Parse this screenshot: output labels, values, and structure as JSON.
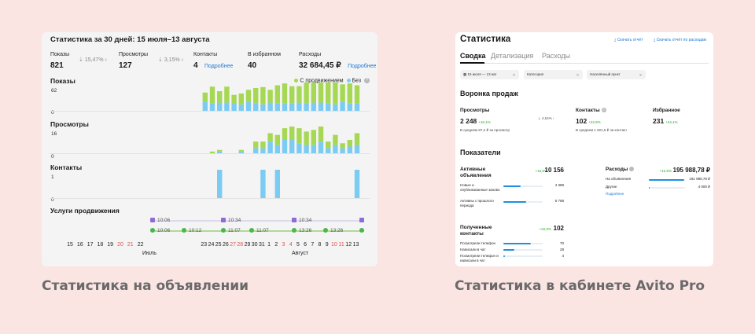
{
  "colors": {
    "promo": "#a6d854",
    "no_promo": "#7ccbf3",
    "link": "#1e78d2",
    "positive": "#2aa52a"
  },
  "left": {
    "title": "Статистика за 30 дней: 15 июля–13 августа",
    "kpis": [
      {
        "label": "Показы",
        "value": "821",
        "change": "15,47%"
      },
      {
        "label": "Просмотры",
        "value": "127",
        "change": "3,15%"
      },
      {
        "label": "Контакты",
        "value": "4",
        "link": "Подробнее"
      },
      {
        "label": "В избранном",
        "value": "40"
      },
      {
        "label": "Расходы",
        "value": "32 684,45 ₽",
        "link": "Подробнее"
      }
    ],
    "legend": {
      "promo": "С продвижением",
      "no_promo": "Без"
    },
    "sections": {
      "impressions": {
        "label": "Показы",
        "max": "62",
        "min": "0"
      },
      "views": {
        "label": "Просмотры",
        "max": "16",
        "min": "0"
      },
      "contacts": {
        "label": "Контакты",
        "max": "1",
        "min": "0"
      },
      "promo": {
        "label": "Услуги продвижения"
      }
    },
    "promo_times": {
      "purple": [
        "10:06",
        "10:34",
        "10:34"
      ],
      "green": [
        "10:06",
        "10:12",
        "11:07",
        "11:07",
        "13:26",
        "13:26"
      ]
    },
    "days": [
      "15",
      "16",
      "17",
      "18",
      "19",
      "20",
      "21",
      "22",
      "23",
      "24",
      "25",
      "26",
      "27",
      "28",
      "29",
      "30",
      "31",
      "1",
      "2",
      "3",
      "4",
      "5",
      "6",
      "7",
      "8",
      "9",
      "10",
      "11",
      "12",
      "13"
    ],
    "weekend_days": [
      "20",
      "21",
      "27",
      "28",
      "3",
      "4",
      "10",
      "11"
    ],
    "months": {
      "july": "Июль",
      "august": "Август"
    }
  },
  "chart_data": [
    {
      "type": "bar",
      "title": "Показы",
      "categories": [
        "15",
        "16",
        "17",
        "18",
        "19",
        "20",
        "21",
        "22",
        "23",
        "24",
        "25",
        "26",
        "27",
        "28",
        "29",
        "30",
        "31",
        "1",
        "2",
        "3",
        "4",
        "5",
        "6",
        "7",
        "8",
        "9",
        "10",
        "11",
        "12",
        "13"
      ],
      "ylim": [
        0,
        62
      ],
      "series": [
        {
          "name": "С продвижением",
          "values": [
            0,
            0,
            0,
            0,
            0,
            0,
            0,
            0,
            20,
            37,
            25,
            35,
            18,
            24,
            26,
            34,
            38,
            28,
            40,
            44,
            38,
            36,
            58,
            60,
            48,
            54,
            48,
            38,
            44,
            40
          ]
        },
        {
          "name": "Без",
          "values": [
            0,
            0,
            0,
            0,
            0,
            0,
            0,
            0,
            20,
            16,
            18,
            18,
            17,
            14,
            20,
            16,
            14,
            18,
            16,
            16,
            16,
            18,
            16,
            18,
            18,
            16,
            14,
            20,
            16,
            16
          ]
        }
      ]
    },
    {
      "type": "bar",
      "title": "Просмотры",
      "categories": [
        "15",
        "16",
        "17",
        "18",
        "19",
        "20",
        "21",
        "22",
        "23",
        "24",
        "25",
        "26",
        "27",
        "28",
        "29",
        "30",
        "31",
        "1",
        "2",
        "3",
        "4",
        "5",
        "6",
        "7",
        "8",
        "9",
        "10",
        "11",
        "12",
        "13"
      ],
      "ylim": [
        0,
        16
      ],
      "series": [
        {
          "name": "С продвижением",
          "values": [
            0,
            0,
            0,
            0,
            0,
            0,
            0,
            0,
            0,
            1,
            1,
            0,
            0,
            1,
            0,
            4,
            4,
            5,
            6,
            7,
            12,
            9,
            8,
            9,
            9,
            4,
            6,
            3,
            4,
            7
          ]
        },
        {
          "name": "Без",
          "values": [
            0,
            0,
            0,
            0,
            0,
            0,
            0,
            0,
            0,
            0,
            1,
            0,
            0,
            1,
            0,
            3,
            3,
            7,
            5,
            8,
            8,
            6,
            5,
            5,
            7,
            3,
            5,
            3,
            4,
            5
          ]
        }
      ]
    },
    {
      "type": "bar",
      "title": "Контакты",
      "categories": [
        "15",
        "16",
        "17",
        "18",
        "19",
        "20",
        "21",
        "22",
        "23",
        "24",
        "25",
        "26",
        "27",
        "28",
        "29",
        "30",
        "31",
        "1",
        "2",
        "3",
        "4",
        "5",
        "6",
        "7",
        "8",
        "9",
        "10",
        "11",
        "12",
        "13"
      ],
      "ylim": [
        0,
        1
      ],
      "series": [
        {
          "name": "Без",
          "values": [
            0,
            0,
            0,
            0,
            0,
            0,
            0,
            0,
            0,
            0,
            1,
            0,
            0,
            0,
            0,
            0,
            1,
            0,
            1,
            0,
            0,
            0,
            0,
            0,
            0,
            0,
            0,
            0,
            0,
            1
          ]
        }
      ]
    }
  ],
  "right": {
    "title": "Статистика",
    "top_links": [
      "Скачать отчёт",
      "Скачать отчёт по расходам"
    ],
    "tabs": [
      "Сводка",
      "Детализация",
      "Расходы"
    ],
    "filters": [
      "15 июля — 13 авг",
      "Категория",
      "Населённый пункт"
    ],
    "funnel_title": "Воронка продаж",
    "metrics": [
      {
        "label": "Просмотры",
        "value": "2 248",
        "gain": "+16,1%",
        "sub": "В среднем 87,2 ₽ за просмотр",
        "ratio": "4,54%"
      },
      {
        "label": "Контакты",
        "value": "102",
        "gain": "+22,9%",
        "sub": "В среднем 1 921,5 ₽ за контакт"
      },
      {
        "label": "Избранное",
        "value": "231",
        "gain": "+34,1%"
      }
    ],
    "indicators_title": "Показатели",
    "active": {
      "title": "Активные объявления",
      "value": "10 156",
      "gain": "+15,5%",
      "rows": [
        {
          "label": "Новые и опубликованные заново",
          "value": "4 388",
          "fill": 0.43
        },
        {
          "label": "Активны с прошлого периода",
          "value": "5 768",
          "fill": 0.57
        }
      ]
    },
    "expenses": {
      "title": "Расходы",
      "value": "195 988,78 ₽",
      "gain": "+12,5%",
      "rows": [
        {
          "label": "На объявления",
          "value": "191 988,78 ₽",
          "fill": 0.97
        },
        {
          "label": "Другие",
          "value": "4 000 ₽",
          "fill": 0.03
        }
      ],
      "link": "Подробнее"
    },
    "contacts": {
      "title": "Полученные контакты",
      "value": "102",
      "gain": "+22,9%",
      "rows": [
        {
          "label": "Посмотрели телефон",
          "value": "70",
          "fill": 0.69
        },
        {
          "label": "Написали в чат",
          "value": "28",
          "fill": 0.27
        },
        {
          "label": "Посмотрели телефон и написали в чат",
          "value": "4",
          "fill": 0.04
        }
      ]
    }
  },
  "captions": {
    "left": "Статистика на объявлении",
    "right": "Статистика в кабинете Avito Pro"
  }
}
